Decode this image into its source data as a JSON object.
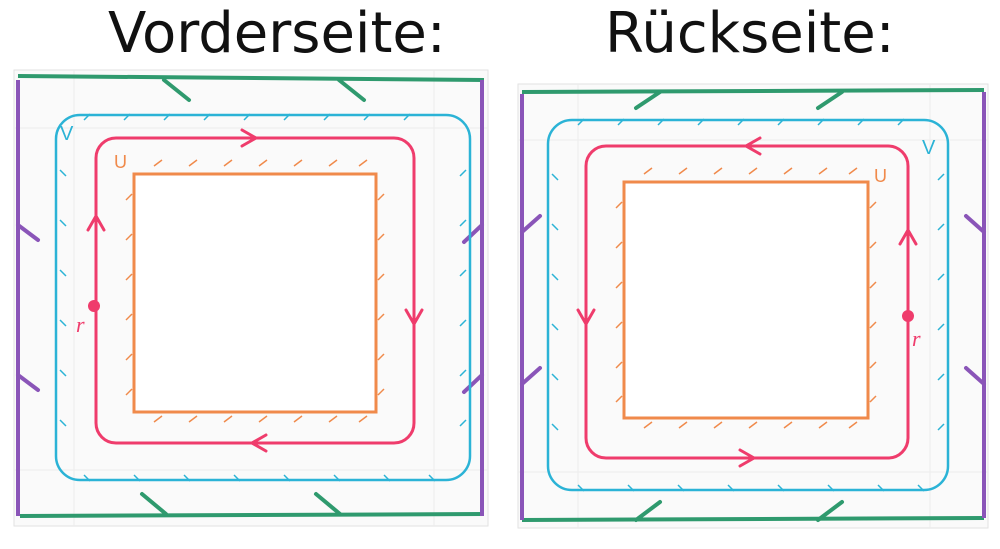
{
  "labels": {
    "front": "Vorderseite:",
    "back": "Rückseite:"
  },
  "marks": {
    "u": "U",
    "v": "V",
    "r": "r"
  },
  "colors": {
    "green": "#2f9a6e",
    "purple": "#8a55b8",
    "cyan": "#2bb3d6",
    "red": "#ef3c6c",
    "orange": "#f08a4b",
    "paper": "#fafafa",
    "hole": "#ffffff"
  },
  "loop_direction": {
    "front": "clockwise",
    "back": "counterclockwise"
  }
}
